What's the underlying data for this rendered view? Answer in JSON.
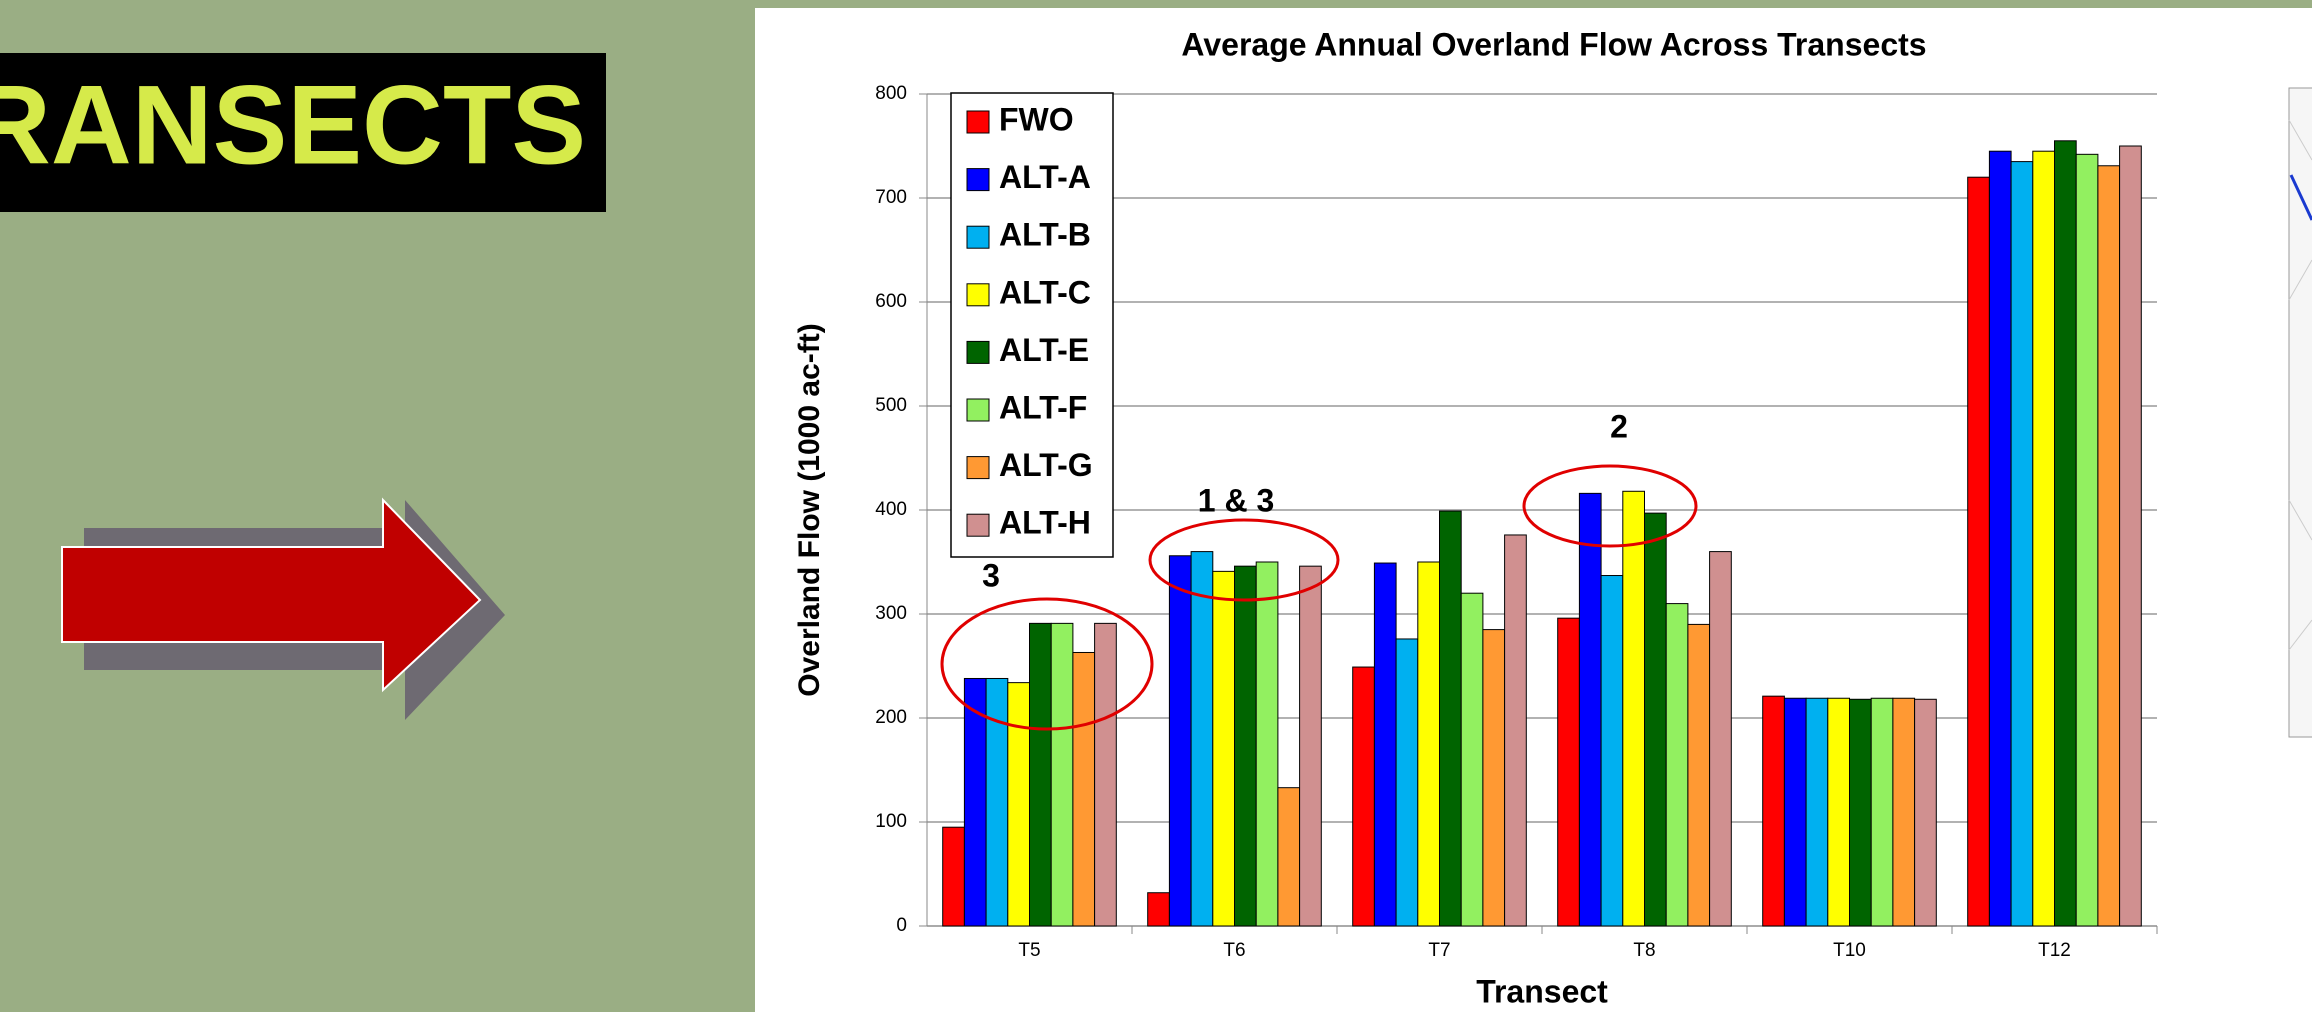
{
  "slide": {
    "heading": "RANSECTS"
  },
  "chart_data": {
    "type": "bar",
    "title": "Average Annual Overland Flow Across Transects",
    "x_label": "Transect",
    "y_label": "Overland Flow (1000 ac-ft)",
    "categories": [
      "T5",
      "T6",
      "T7",
      "T8",
      "T10",
      "T12"
    ],
    "series": [
      {
        "name": "FWO",
        "color": "#ff0000",
        "values": [
          95,
          32,
          249,
          296,
          221,
          720
        ]
      },
      {
        "name": "ALT-A",
        "color": "#0000ff",
        "values": [
          238,
          356,
          349,
          416,
          219,
          745
        ]
      },
      {
        "name": "ALT-B",
        "color": "#00b0f0",
        "values": [
          238,
          360,
          276,
          337,
          219,
          735
        ]
      },
      {
        "name": "ALT-C",
        "color": "#ffff00",
        "values": [
          234,
          341,
          350,
          418,
          219,
          745
        ]
      },
      {
        "name": "ALT-E",
        "color": "#006400",
        "values": [
          291,
          346,
          399,
          397,
          218,
          755
        ]
      },
      {
        "name": "ALT-F",
        "color": "#92f060",
        "values": [
          291,
          350,
          320,
          310,
          219,
          742
        ]
      },
      {
        "name": "ALT-G",
        "color": "#ff9933",
        "values": [
          263,
          133,
          285,
          290,
          219,
          731
        ]
      },
      {
        "name": "ALT-H",
        "color": "#d09090",
        "values": [
          291,
          346,
          376,
          360,
          218,
          750
        ]
      }
    ],
    "ylim": [
      0,
      800
    ],
    "yticks": [
      0,
      100,
      200,
      300,
      400,
      500,
      600,
      700,
      800
    ],
    "grid": true,
    "legend": "top-left",
    "annotations": [
      "3",
      "1 & 3",
      "2"
    ]
  }
}
